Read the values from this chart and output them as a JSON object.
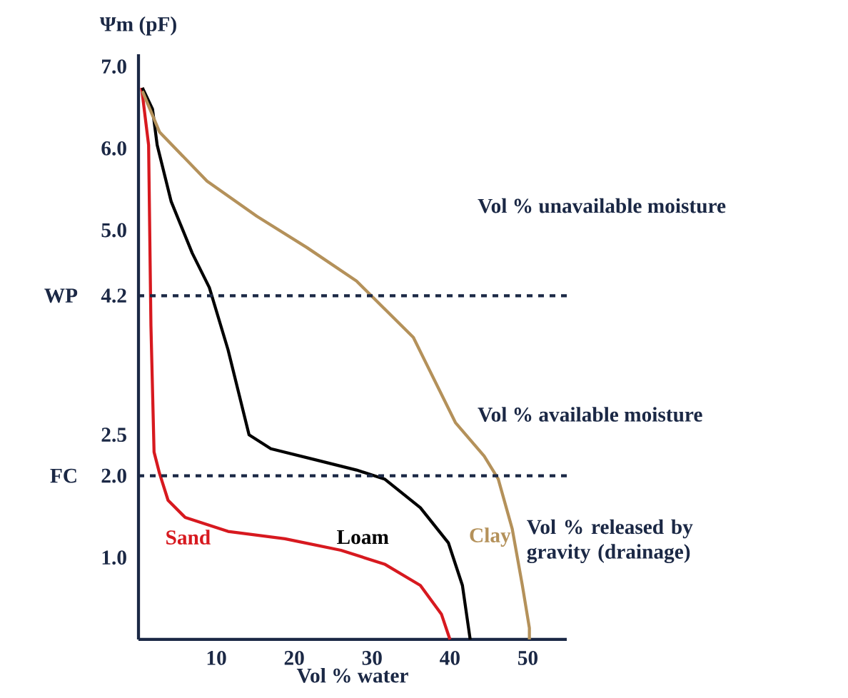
{
  "chart_data": {
    "type": "line",
    "xlabel": "Vol % water",
    "ylabel": "Ψm (pF)",
    "xlim": [
      0,
      55
    ],
    "ylim": [
      0,
      7.15
    ],
    "xticks": [
      10,
      20,
      30,
      40,
      50
    ],
    "yticks": [
      {
        "value": 1,
        "label": "1.0"
      },
      {
        "value": 2,
        "label": "2.0"
      },
      2.5,
      4.2,
      {
        "value": 5,
        "label": "5.0"
      },
      {
        "value": 6,
        "label": "6.0"
      },
      {
        "value": 7,
        "label": "7.0"
      }
    ],
    "legend": false,
    "marker": "none",
    "line_style": "solid",
    "ref_lines": [
      {
        "axis": "y",
        "value": 4.2,
        "label": "WP",
        "color": "#1b2845",
        "line_style": "dashed"
      },
      {
        "axis": "y",
        "value": 2,
        "label": "FC",
        "color": "#1b2845",
        "line_style": "dashed"
      }
    ],
    "annotations": [
      "Vol % unavailable moisture",
      "Vol % available moisture",
      "Vol % released by gravity (drainage)"
    ],
    "series": [
      {
        "name": "Sand",
        "color": "#d7191f",
        "x": [
          0.4,
          1.3,
          1.6,
          2,
          2.7,
          3.8,
          6,
          11.5,
          18.8,
          26,
          31.6,
          36.2,
          38.9,
          40
        ],
        "values": [
          6.74,
          6.04,
          3.83,
          2.29,
          2.03,
          1.7,
          1.49,
          1.32,
          1.23,
          1.09,
          0.92,
          0.66,
          0.31,
          0
        ]
      },
      {
        "name": "Loam",
        "color": "#000000",
        "x": [
          0.5,
          1.8,
          2.4,
          4.2,
          6.9,
          9.1,
          11.5,
          14.2,
          17,
          22.5,
          28,
          31.6,
          36.2,
          39.8,
          41.6,
          42.6
        ],
        "values": [
          6.74,
          6.48,
          6.04,
          5.35,
          4.72,
          4.3,
          3.54,
          2.5,
          2.33,
          2.2,
          2.07,
          1.96,
          1.61,
          1.18,
          0.66,
          0
        ]
      },
      {
        "name": "Clay",
        "color": "#b4915a",
        "x": [
          0.5,
          2.7,
          8.8,
          15.2,
          21.6,
          28,
          35.3,
          40.7,
          44.4,
          46.2,
          48,
          49.3,
          50.2,
          50.2
        ],
        "values": [
          6.7,
          6.2,
          5.6,
          5.17,
          4.79,
          4.38,
          3.69,
          2.65,
          2.24,
          1.96,
          1.35,
          0.66,
          0.14,
          0
        ]
      }
    ]
  }
}
